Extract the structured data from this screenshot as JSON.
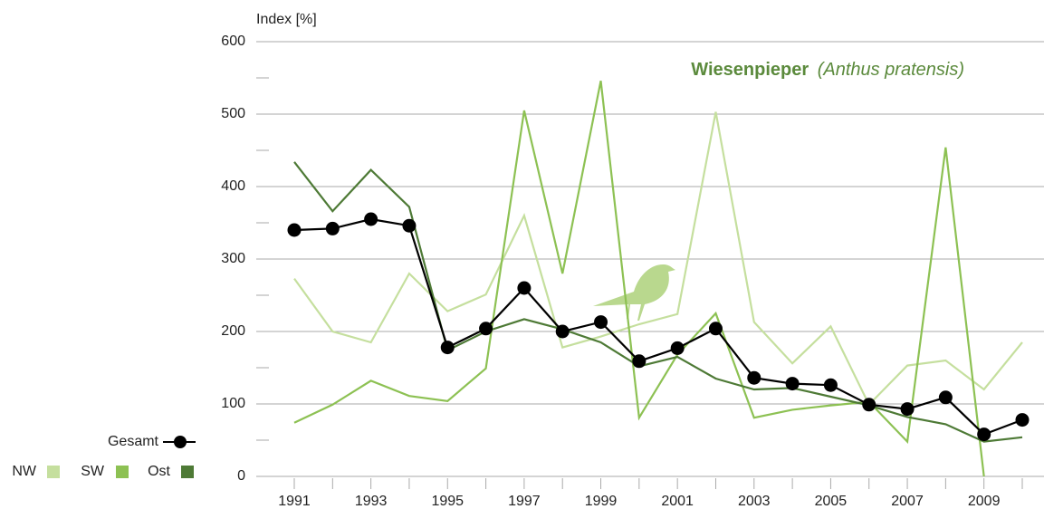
{
  "chart_data": {
    "type": "line",
    "title": "Wiesenpieper",
    "subtitle": "(Anthus pratensis)",
    "title_color": "#5b8a3c",
    "ylabel": "Index [%]",
    "categories": [
      "1991",
      null,
      "1993",
      null,
      "1995",
      null,
      "1997",
      null,
      "1999",
      null,
      "2001",
      null,
      "2003",
      null,
      "2005",
      null,
      "2007",
      null,
      "2009",
      null
    ],
    "ylim": [
      0,
      600
    ],
    "yticks": [
      0,
      100,
      200,
      300,
      400,
      500,
      600
    ],
    "grid": true,
    "series": [
      {
        "name": "NW",
        "color": "#c5df9e",
        "values": [
          273,
          200,
          185,
          280,
          228,
          251,
          360,
          178,
          193,
          210,
          224,
          503,
          213,
          156,
          207,
          99,
          153,
          160,
          120,
          185
        ]
      },
      {
        "name": "SW",
        "color": "#8dc153",
        "values": [
          74,
          99,
          132,
          111,
          104,
          149,
          505,
          280,
          546,
          81,
          168,
          225,
          81,
          92,
          98,
          103,
          48,
          454,
          0,
          null
        ]
      },
      {
        "name": "Ost",
        "color": "#4e7a36",
        "values": [
          434,
          366,
          423,
          372,
          174,
          200,
          217,
          203,
          185,
          152,
          165,
          135,
          120,
          122,
          110,
          98,
          82,
          72,
          48,
          54
        ]
      },
      {
        "name": "Gesamt",
        "color": "#000000",
        "marker": "circle",
        "values": [
          340,
          342,
          355,
          346,
          178,
          204,
          260,
          200,
          213,
          159,
          177,
          204,
          136,
          128,
          126,
          99,
          93,
          109,
          58,
          78
        ]
      }
    ]
  }
}
